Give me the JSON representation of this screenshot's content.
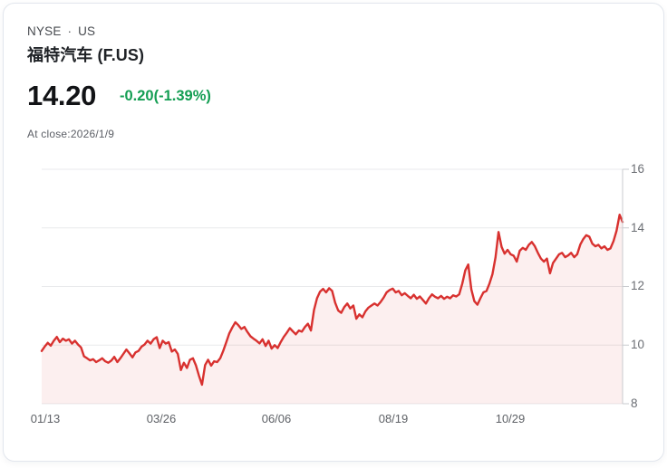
{
  "header": {
    "exchange": "NYSE",
    "separator": "·",
    "market": "US",
    "title": "福特汽车 (F.US)",
    "price": "14.20",
    "change": "-0.20(-1.39%)",
    "change_color": "#149e53",
    "as_of": "At close:2026/1/9"
  },
  "chart_data": {
    "type": "area",
    "title": "福特汽车 (F.US) 1Y price",
    "xlabel": "",
    "ylabel": "",
    "ylim": [
      8,
      16
    ],
    "grid": "horizontal",
    "y_axis_side": "right",
    "legend": "none",
    "y_ticks": [
      "16",
      "14",
      "12",
      "10",
      "8"
    ],
    "x_ticks": [
      "01/13",
      "03/26",
      "06/06",
      "08/19",
      "10/29"
    ],
    "x_tick_pos": [
      0.006,
      0.206,
      0.404,
      0.605,
      0.806
    ],
    "line_color": "#d8312f",
    "fill_opacity": 0.08,
    "grid_color": "#e9eaec",
    "axis_color": "#c9cbcf",
    "last_close": 14.2,
    "values": [
      9.8,
      9.95,
      10.08,
      9.98,
      10.15,
      10.28,
      10.1,
      10.22,
      10.15,
      10.2,
      10.05,
      10.15,
      10.02,
      9.92,
      9.62,
      9.55,
      9.48,
      9.52,
      9.42,
      9.48,
      9.55,
      9.45,
      9.4,
      9.47,
      9.6,
      9.42,
      9.55,
      9.7,
      9.85,
      9.72,
      9.58,
      9.75,
      9.8,
      9.95,
      10.02,
      10.15,
      10.05,
      10.2,
      10.27,
      9.9,
      10.15,
      10.05,
      10.1,
      9.78,
      9.85,
      9.7,
      9.15,
      9.4,
      9.22,
      9.5,
      9.55,
      9.3,
      8.95,
      8.65,
      9.32,
      9.5,
      9.3,
      9.45,
      9.42,
      9.55,
      9.8,
      10.1,
      10.4,
      10.6,
      10.78,
      10.68,
      10.55,
      10.62,
      10.45,
      10.3,
      10.22,
      10.15,
      10.06,
      10.2,
      9.97,
      10.15,
      9.88,
      10.0,
      9.9,
      10.1,
      10.28,
      10.42,
      10.58,
      10.47,
      10.37,
      10.5,
      10.46,
      10.62,
      10.73,
      10.5,
      11.2,
      11.6,
      11.82,
      11.92,
      11.8,
      11.94,
      11.85,
      11.45,
      11.18,
      11.1,
      11.3,
      11.42,
      11.25,
      11.35,
      10.9,
      11.05,
      10.95,
      11.15,
      11.28,
      11.35,
      11.42,
      11.35,
      11.47,
      11.62,
      11.8,
      11.88,
      11.93,
      11.8,
      11.85,
      11.7,
      11.77,
      11.68,
      11.6,
      11.72,
      11.58,
      11.66,
      11.54,
      11.42,
      11.6,
      11.73,
      11.65,
      11.6,
      11.68,
      11.58,
      11.65,
      11.6,
      11.7,
      11.66,
      11.73,
      12.1,
      12.55,
      12.75,
      11.9,
      11.5,
      11.38,
      11.6,
      11.8,
      11.85,
      12.1,
      12.42,
      13.0,
      13.86,
      13.35,
      13.12,
      13.25,
      13.1,
      13.05,
      12.85,
      13.22,
      13.32,
      13.25,
      13.42,
      13.52,
      13.37,
      13.15,
      12.95,
      12.85,
      12.95,
      12.45,
      12.8,
      12.95,
      13.1,
      13.15,
      13.0,
      13.06,
      13.15,
      13.0,
      13.1,
      13.43,
      13.62,
      13.75,
      13.7,
      13.46,
      13.37,
      13.42,
      13.3,
      13.37,
      13.25,
      13.3,
      13.55,
      13.9,
      14.45,
      14.2
    ]
  }
}
